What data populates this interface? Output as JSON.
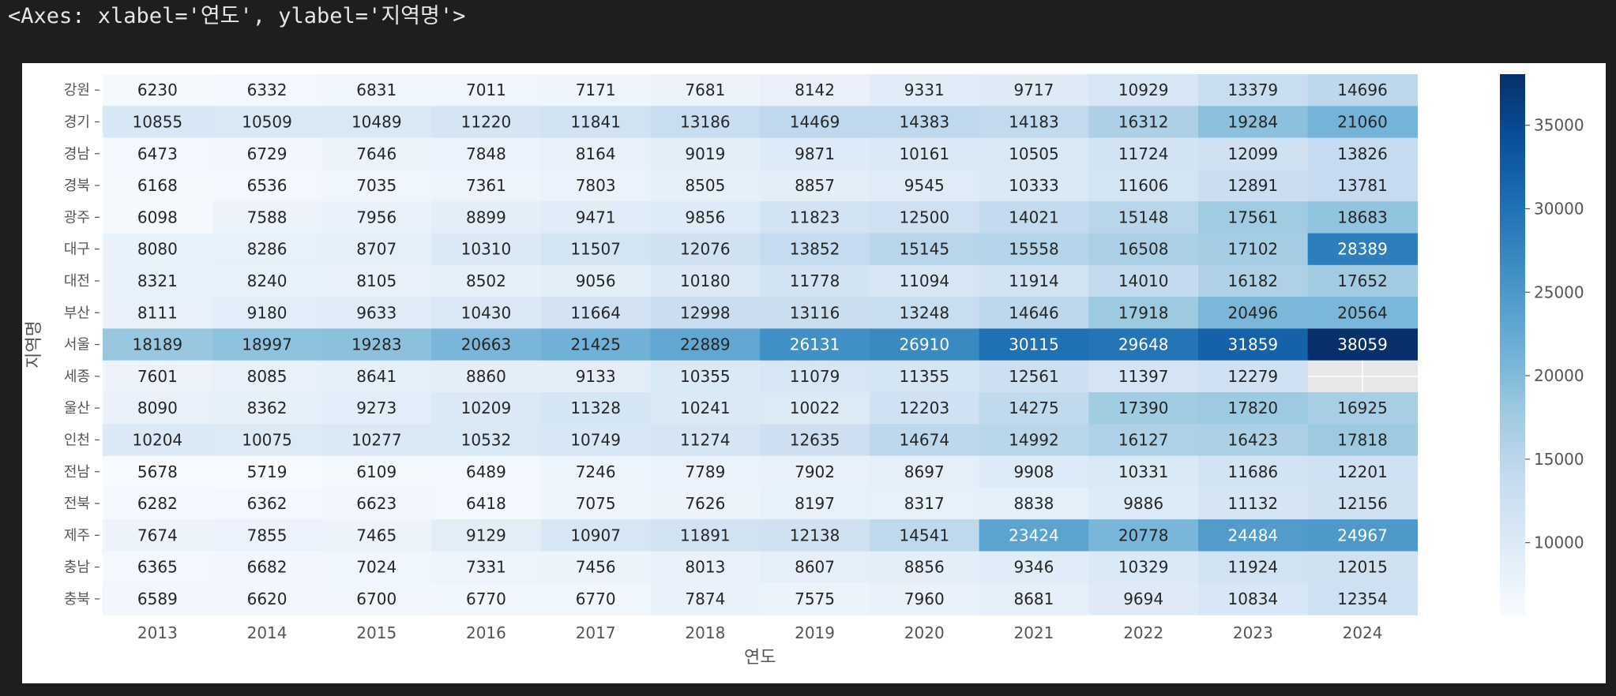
{
  "output_text": "<Axes: xlabel='연도', ylabel='지역명'>",
  "chart_data": {
    "type": "heatmap",
    "xlabel": "연도",
    "ylabel": "지역명",
    "x": [
      "2013",
      "2014",
      "2015",
      "2016",
      "2017",
      "2018",
      "2019",
      "2020",
      "2021",
      "2022",
      "2023",
      "2024"
    ],
    "y": [
      "강원",
      "경기",
      "경남",
      "경북",
      "광주",
      "대구",
      "대전",
      "부산",
      "서울",
      "세종",
      "울산",
      "인천",
      "전남",
      "전북",
      "제주",
      "충남",
      "충북"
    ],
    "values": [
      [
        6230,
        6332,
        6831,
        7011,
        7171,
        7681,
        8142,
        9331,
        9717,
        10929,
        13379,
        14696
      ],
      [
        10855,
        10509,
        10489,
        11220,
        11841,
        13186,
        14469,
        14383,
        14183,
        16312,
        19284,
        21060
      ],
      [
        6473,
        6729,
        7646,
        7848,
        8164,
        9019,
        9871,
        10161,
        10505,
        11724,
        12099,
        13826
      ],
      [
        6168,
        6536,
        7035,
        7361,
        7803,
        8505,
        8857,
        9545,
        10333,
        11606,
        12891,
        13781
      ],
      [
        6098,
        7588,
        7956,
        8899,
        9471,
        9856,
        11823,
        12500,
        14021,
        15148,
        17561,
        18683
      ],
      [
        8080,
        8286,
        8707,
        10310,
        11507,
        12076,
        13852,
        15145,
        15558,
        16508,
        17102,
        28389
      ],
      [
        8321,
        8240,
        8105,
        8502,
        9056,
        10180,
        11778,
        11094,
        11914,
        14010,
        16182,
        17652
      ],
      [
        8111,
        9180,
        9633,
        10430,
        11664,
        12998,
        13116,
        13248,
        14646,
        17918,
        20496,
        20564
      ],
      [
        18189,
        18997,
        19283,
        20663,
        21425,
        22889,
        26131,
        26910,
        30115,
        29648,
        31859,
        38059
      ],
      [
        7601,
        8085,
        8641,
        8860,
        9133,
        10355,
        11079,
        11355,
        12561,
        11397,
        12279,
        null
      ],
      [
        8090,
        8362,
        9273,
        10209,
        11328,
        10241,
        10022,
        12203,
        14275,
        17390,
        17820,
        16925
      ],
      [
        10204,
        10075,
        10277,
        10532,
        10749,
        11274,
        12635,
        14674,
        14992,
        16127,
        16423,
        17818
      ],
      [
        5678,
        5719,
        6109,
        6489,
        7246,
        7789,
        7902,
        8697,
        9908,
        10331,
        11686,
        12201
      ],
      [
        6282,
        6362,
        6623,
        6418,
        7075,
        7626,
        8197,
        8317,
        8838,
        9886,
        11132,
        12156
      ],
      [
        7674,
        7855,
        7465,
        9129,
        10907,
        11891,
        12138,
        14541,
        23424,
        20778,
        24484,
        24967
      ],
      [
        6365,
        6682,
        7024,
        7331,
        7456,
        8013,
        8607,
        8856,
        9346,
        10329,
        11924,
        12015
      ],
      [
        6589,
        6620,
        6700,
        6770,
        6770,
        7874,
        7575,
        7960,
        8681,
        9694,
        10834,
        12354
      ]
    ],
    "colorscale": "Blues",
    "vmin": 5678,
    "vmax": 38059,
    "colorbar_ticks": [
      10000,
      15000,
      20000,
      25000,
      30000,
      35000
    ],
    "missing_color": "#e8e8e8",
    "annotations": true
  }
}
